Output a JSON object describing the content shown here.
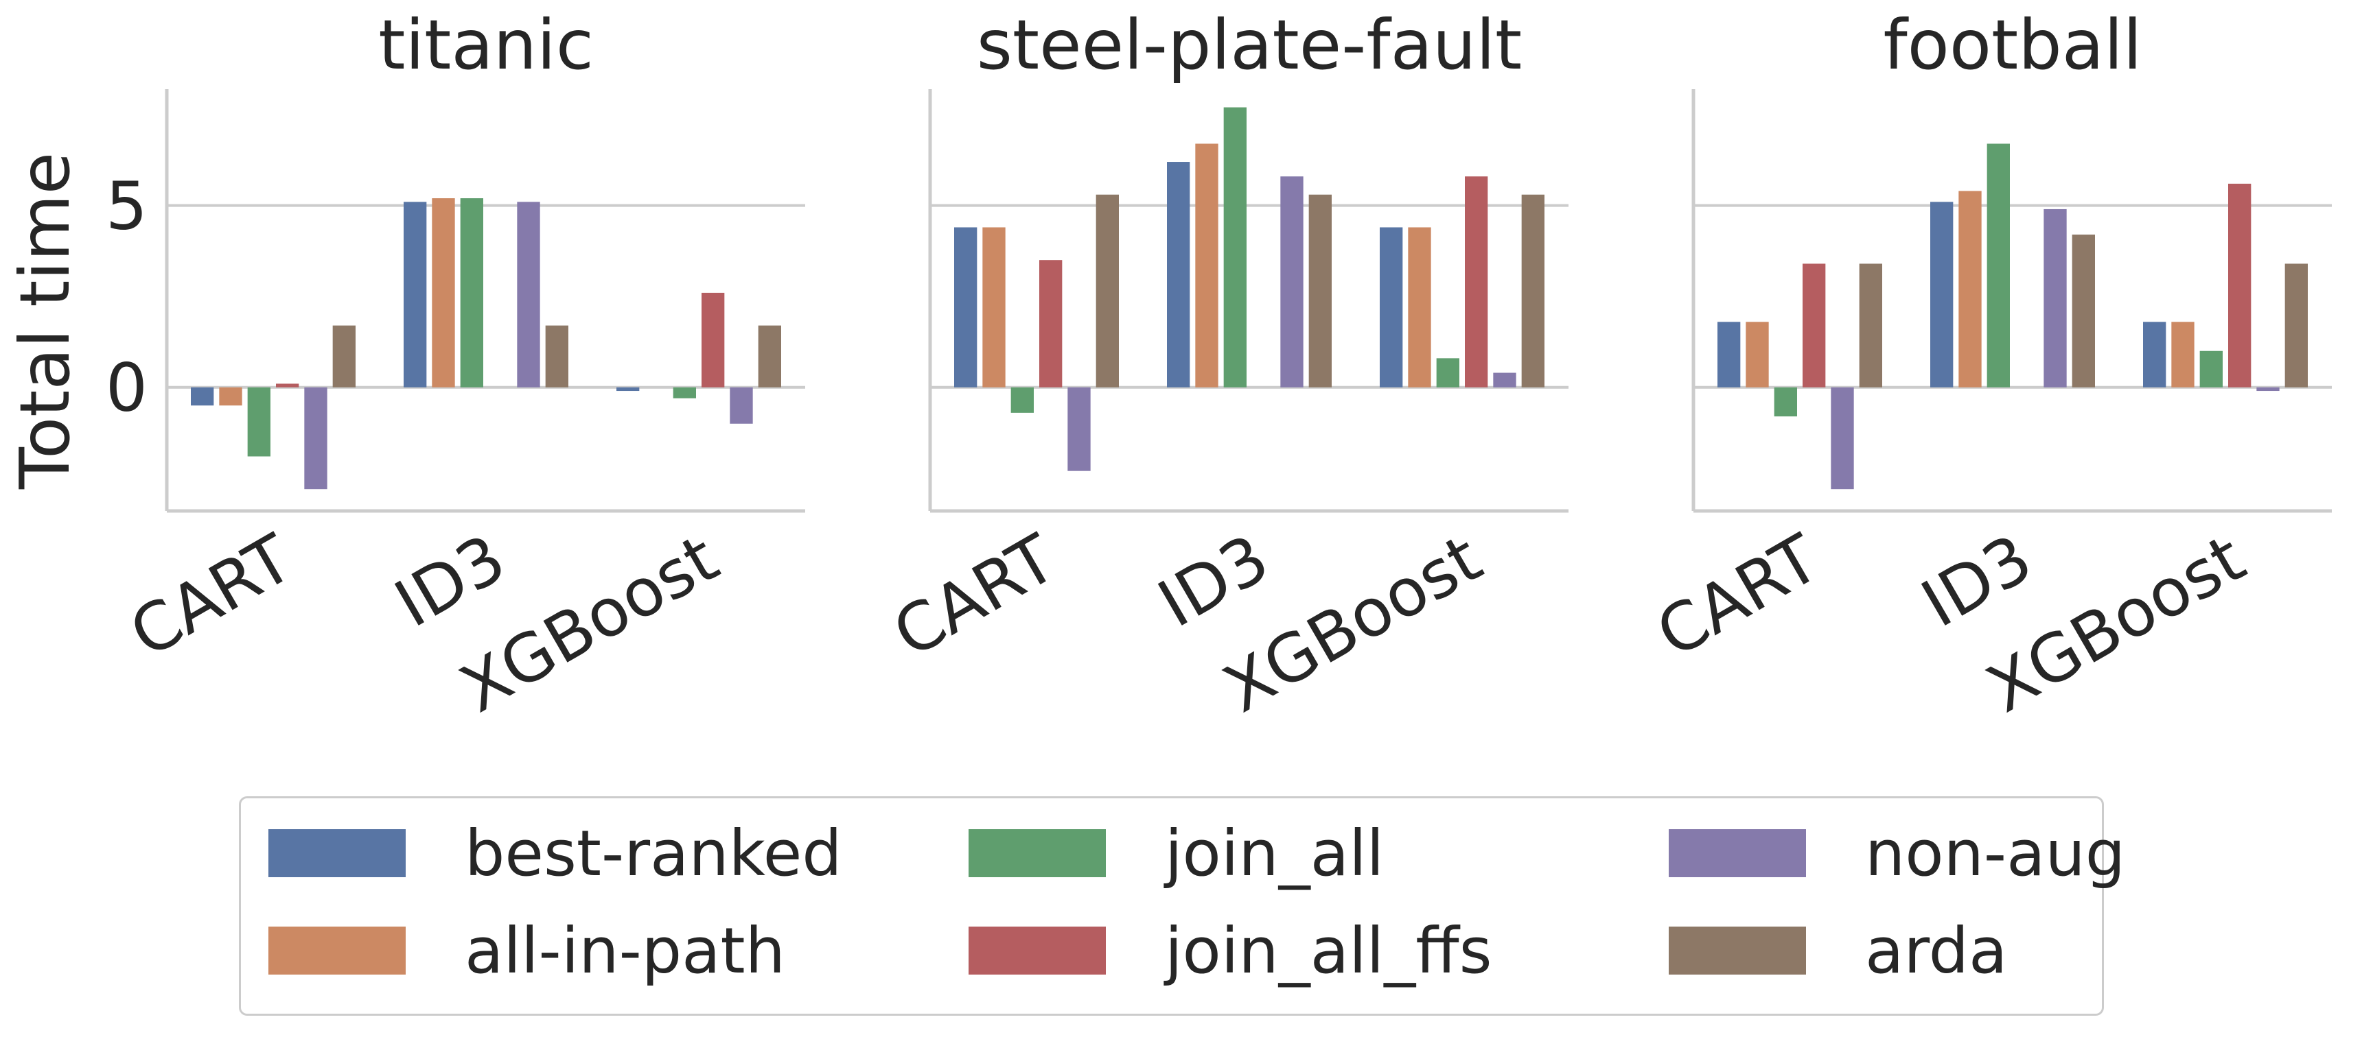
{
  "chart_data": [
    {
      "type": "bar",
      "title": "titanic",
      "ylabel": "Total time",
      "categories": [
        "CART",
        "ID3",
        "XGBoost"
      ],
      "yticks": [
        0,
        5
      ],
      "ylim": [
        -3.4,
        8.2
      ],
      "series": [
        {
          "name": "best-ranked",
          "values": [
            -0.5,
            5.1,
            -0.1
          ]
        },
        {
          "name": "all-in-path",
          "values": [
            -0.5,
            5.2,
            0.0
          ]
        },
        {
          "name": "join_all",
          "values": [
            -1.9,
            5.2,
            -0.3
          ]
        },
        {
          "name": "join_all_ffs",
          "values": [
            0.1,
            0.0,
            2.6
          ]
        },
        {
          "name": "non-aug",
          "values": [
            -2.8,
            5.1,
            -1.0
          ]
        },
        {
          "name": "arda",
          "values": [
            1.7,
            1.7,
            1.7
          ]
        }
      ]
    },
    {
      "type": "bar",
      "title": "steel-plate-fault",
      "ylabel": "",
      "categories": [
        "CART",
        "ID3",
        "XGBoost"
      ],
      "yticks": [
        0,
        5
      ],
      "ylim": [
        -3.4,
        8.2
      ],
      "series": [
        {
          "name": "best-ranked",
          "values": [
            4.4,
            6.2,
            4.4
          ]
        },
        {
          "name": "all-in-path",
          "values": [
            4.4,
            6.7,
            4.4
          ]
        },
        {
          "name": "join_all",
          "values": [
            -0.7,
            7.7,
            0.8
          ]
        },
        {
          "name": "join_all_ffs",
          "values": [
            3.5,
            0.0,
            5.8
          ]
        },
        {
          "name": "non-aug",
          "values": [
            -2.3,
            5.8,
            0.4
          ]
        },
        {
          "name": "arda",
          "values": [
            5.3,
            5.3,
            5.3
          ]
        }
      ]
    },
    {
      "type": "bar",
      "title": "football",
      "ylabel": "",
      "categories": [
        "CART",
        "ID3",
        "XGBoost"
      ],
      "yticks": [
        0,
        5
      ],
      "ylim": [
        -3.4,
        8.2
      ],
      "series": [
        {
          "name": "best-ranked",
          "values": [
            1.8,
            5.1,
            1.8
          ]
        },
        {
          "name": "all-in-path",
          "values": [
            1.8,
            5.4,
            1.8
          ]
        },
        {
          "name": "join_all",
          "values": [
            -0.8,
            6.7,
            1.0
          ]
        },
        {
          "name": "join_all_ffs",
          "values": [
            3.4,
            0.0,
            5.6
          ]
        },
        {
          "name": "non-aug",
          "values": [
            -2.8,
            4.9,
            -0.1
          ]
        },
        {
          "name": "arda",
          "values": [
            3.4,
            4.2,
            3.4
          ]
        }
      ]
    }
  ],
  "legend": {
    "placement": "bottom-center",
    "items": [
      {
        "label": "best-ranked",
        "color": "#5875a4"
      },
      {
        "label": "all-in-path",
        "color": "#cc8963"
      },
      {
        "label": "join_all",
        "color": "#5f9e6e"
      },
      {
        "label": "join_all_ffs",
        "color": "#b55d60"
      },
      {
        "label": "non-aug",
        "color": "#857aab"
      },
      {
        "label": "arda",
        "color": "#8d7866"
      }
    ]
  },
  "grid": "horizontal"
}
